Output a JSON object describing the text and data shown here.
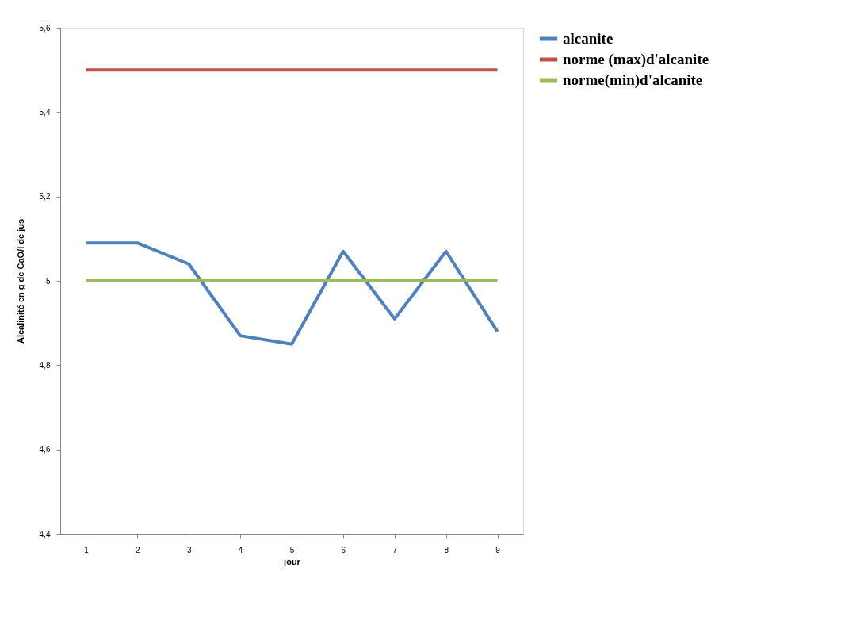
{
  "chart_data": {
    "type": "line",
    "xlabel": "jour",
    "ylabel": "Alcalinité en g de CaO/l de jus",
    "categories": [
      "1",
      "2",
      "3",
      "4",
      "5",
      "6",
      "7",
      "8",
      "9"
    ],
    "series": [
      {
        "name": "alcanite",
        "color": "#4f81bd",
        "values": [
          5.09,
          5.09,
          5.04,
          4.87,
          4.85,
          5.07,
          4.91,
          5.07,
          4.88
        ]
      },
      {
        "name": "norme (max)d'alcanite",
        "color": "#c0504d",
        "values": [
          5.5,
          5.5,
          5.5,
          5.5,
          5.5,
          5.5,
          5.5,
          5.5,
          5.5
        ]
      },
      {
        "name": "norme(min)d'alcanite",
        "color": "#9bbb59",
        "values": [
          5,
          5,
          5,
          5,
          5,
          5,
          5,
          5,
          5
        ]
      }
    ],
    "ylim": [
      4.4,
      5.6
    ],
    "yticks": [
      {
        "value": 4.4,
        "label": "4,4"
      },
      {
        "value": 4.6,
        "label": "4,6"
      },
      {
        "value": 4.8,
        "label": "4,8"
      },
      5,
      {
        "value": 5.2,
        "label": "5,2"
      },
      {
        "value": 5.4,
        "label": "5,4"
      },
      {
        "value": 5.6,
        "label": "5,6"
      }
    ],
    "grid": false,
    "legend": "right",
    "marker": "none",
    "line_style": "solid"
  }
}
